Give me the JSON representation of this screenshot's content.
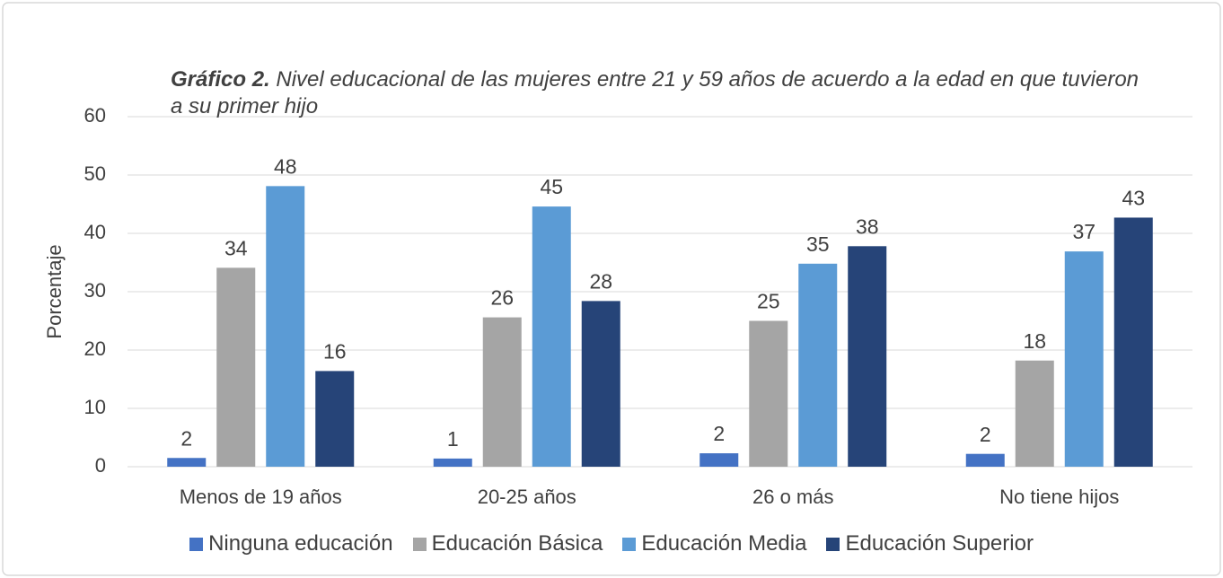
{
  "chart_data": {
    "type": "bar",
    "title_prefix": "Gráfico 2.",
    "title": "Nivel educacional de las mujeres entre 21 y 59 años de acuerdo a la edad en que tuvieron a su primer hijo",
    "y_label": "Porcentaje",
    "categories": [
      "Menos de 19 años",
      "20-25 años",
      "26 o más",
      "No tiene hijos"
    ],
    "series": [
      {
        "name": "Ninguna educación",
        "color": "#4472c4",
        "values": [
          1.5,
          1.4,
          2.3,
          2.2
        ],
        "value_labels": [
          "2",
          "1",
          "2",
          "2"
        ]
      },
      {
        "name": "Educación Básica",
        "color": "#a5a5a5",
        "values": [
          34.1,
          25.6,
          25.0,
          18.2
        ],
        "value_labels": [
          "34",
          "26",
          "25",
          "18"
        ]
      },
      {
        "name": "Educación Media",
        "color": "#5b9bd5",
        "values": [
          48.1,
          44.6,
          34.8,
          36.9
        ],
        "value_labels": [
          "48",
          "45",
          "35",
          "37"
        ]
      },
      {
        "name": "Educación Superior",
        "color": "#264478",
        "values": [
          16.4,
          28.4,
          37.8,
          42.7
        ],
        "value_labels": [
          "16",
          "28",
          "38",
          "43"
        ]
      }
    ],
    "ylim": [
      0,
      60
    ],
    "yticks": [
      0,
      10,
      20,
      30,
      40,
      50,
      60
    ],
    "grid": true,
    "legend": "bottom"
  }
}
